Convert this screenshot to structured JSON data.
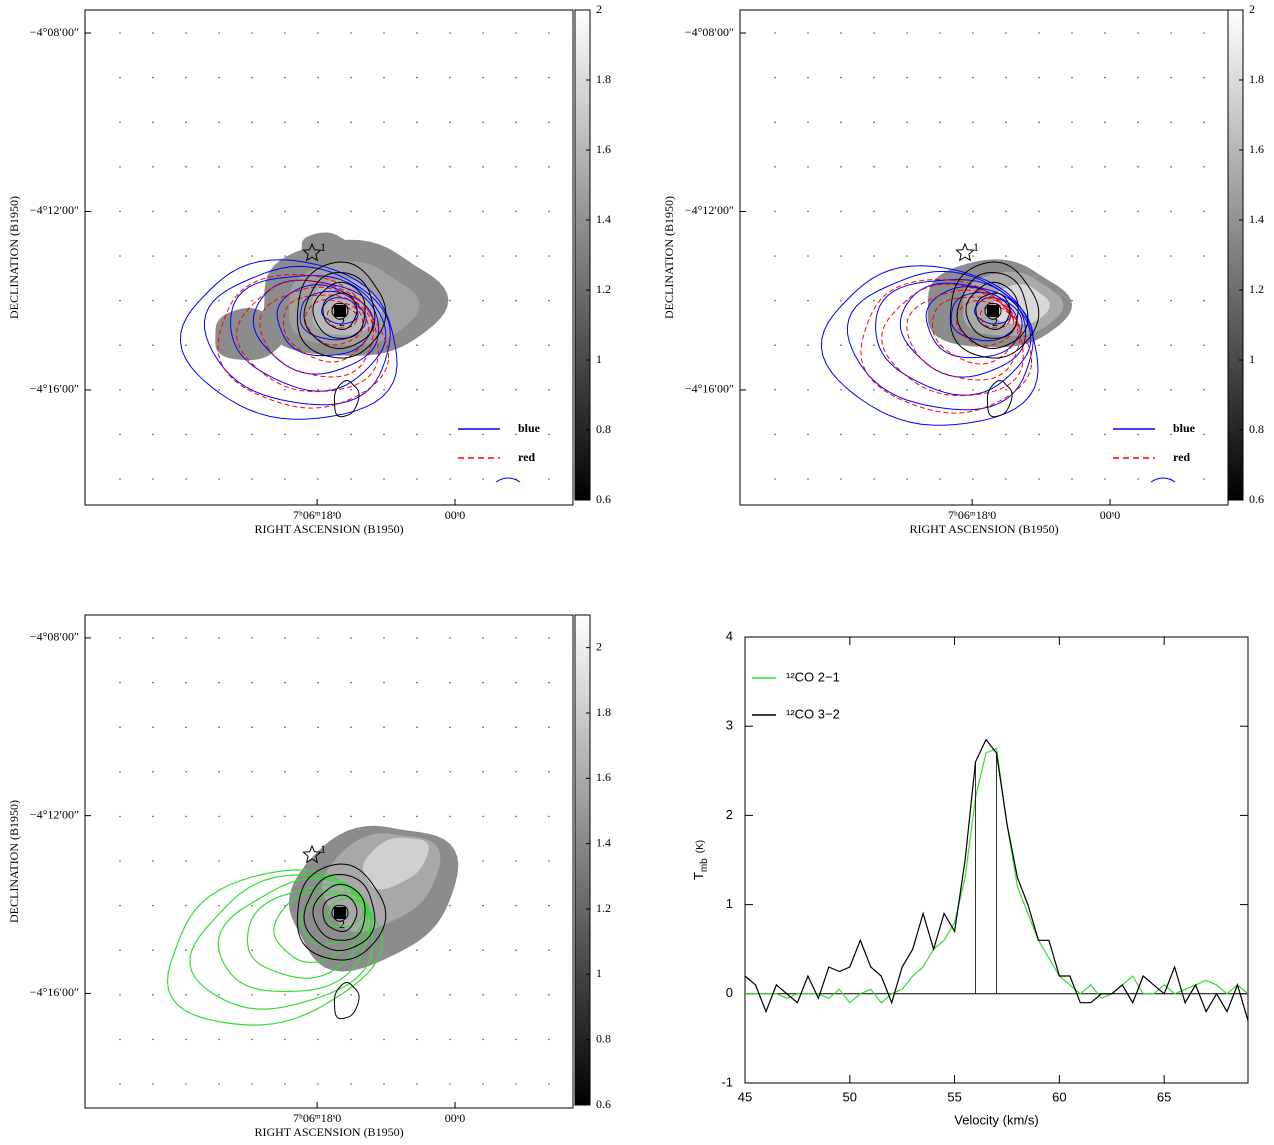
{
  "chart_data": [
    {
      "type": "contour",
      "xlabel": "RIGHT ASCENSION (B1950)",
      "ylabel": "DECLINATION (B1950)",
      "xlim": [
        48.3,
        -15.4
      ],
      "xticks": [
        {
          "value": 18,
          "label": "7ʰ06ᵐ18ˢ0"
        },
        {
          "value": 0,
          "label": "00ˢ0"
        }
      ],
      "ylim": [
        -4.1247,
        -4.3097
      ],
      "yticks": [
        {
          "value": -4.1333,
          "label": "−4°08′00″"
        },
        {
          "value": -4.2,
          "label": "−4°12′00″"
        },
        {
          "value": -4.2667,
          "label": "−4°16′00″"
        }
      ],
      "colorbar": {
        "lim": [
          0.6,
          2
        ],
        "ticks": [
          0.6,
          0.8,
          1,
          1.2,
          1.4,
          1.6,
          1.8,
          2
        ]
      },
      "sources": [
        "1",
        "2"
      ],
      "legend": [
        {
          "name": "blue",
          "color": "#0000ff",
          "style": "solid"
        },
        {
          "name": "red",
          "color": "#ff0000",
          "style": "dashed"
        }
      ]
    },
    {
      "type": "contour",
      "xlabel": "RIGHT ASCENSION (B1950)",
      "ylabel": "DECLINATION (B1950)",
      "xlim": [
        48.3,
        -15.4
      ],
      "xticks": [
        {
          "value": 18,
          "label": "7ʰ06ᵐ18ˢ0"
        },
        {
          "value": 0,
          "label": "00ˢ0"
        }
      ],
      "ylim": [
        -4.1247,
        -4.3097
      ],
      "yticks": [
        {
          "value": -4.1333,
          "label": "−4°08′00″"
        },
        {
          "value": -4.2,
          "label": "−4°12′00″"
        },
        {
          "value": -4.2667,
          "label": "−4°16′00″"
        }
      ],
      "colorbar": {
        "lim": [
          0.6,
          2
        ],
        "ticks": [
          0.6,
          0.8,
          1,
          1.2,
          1.4,
          1.6,
          1.8,
          2
        ]
      },
      "sources": [
        "1",
        "2"
      ],
      "legend": [
        {
          "name": "blue",
          "color": "#0000ff",
          "style": "solid"
        },
        {
          "name": "red",
          "color": "#ff0000",
          "style": "dashed"
        }
      ]
    },
    {
      "type": "contour",
      "xlabel": "RIGHT ASCENSION (B1950)",
      "ylabel": "DECLINATION (B1950)",
      "xlim": [
        48.3,
        -15.4
      ],
      "xticks": [
        {
          "value": 18,
          "label": "7ʰ06ᵐ18ˢ0"
        },
        {
          "value": 0,
          "label": "00ˢ0"
        }
      ],
      "ylim": [
        -4.1247,
        -4.3097
      ],
      "yticks": [
        {
          "value": -4.1333,
          "label": "−4°08′00″"
        },
        {
          "value": -4.2,
          "label": "−4°12′00″"
        },
        {
          "value": -4.2667,
          "label": "−4°16′00″"
        }
      ],
      "colorbar": {
        "lim": [
          0.6,
          2.1
        ],
        "ticks": [
          0.6,
          0.8,
          1,
          1.2,
          1.4,
          1.6,
          1.8,
          2
        ]
      },
      "sources": [
        "1",
        "2"
      ]
    },
    {
      "type": "line",
      "xlabel": "Velocity (km/s)",
      "ylabel": {
        "main": "T",
        "sub": "mb",
        "unit": "(K)"
      },
      "xlim": [
        45,
        69
      ],
      "xticks": [
        45,
        50,
        55,
        60,
        65
      ],
      "ylim": [
        -1,
        4
      ],
      "yticks": [
        -1,
        0,
        1,
        2,
        3,
        4
      ],
      "vlines": [
        56,
        57
      ],
      "x": [
        45,
        45.5,
        46,
        46.5,
        47,
        47.5,
        48,
        48.5,
        49,
        49.5,
        50,
        50.5,
        51,
        51.5,
        52,
        52.5,
        53,
        53.5,
        54,
        54.5,
        55,
        55.5,
        56,
        56.5,
        57,
        57.5,
        58,
        58.5,
        59,
        59.5,
        60,
        60.5,
        61,
        61.5,
        62,
        62.5,
        63,
        63.5,
        64,
        64.5,
        65,
        65.5,
        66,
        66.5,
        67,
        67.5,
        68,
        68.5,
        69
      ],
      "series": [
        {
          "name": "¹²CO 2−1",
          "color": "#33dd33",
          "values": [
            0,
            0,
            0,
            0,
            -0.05,
            0,
            0,
            0,
            -0.05,
            0.05,
            -0.1,
            0,
            0.05,
            -0.1,
            0,
            0.05,
            0.2,
            0.3,
            0.5,
            0.6,
            0.8,
            1.3,
            2.2,
            2.7,
            2.75,
            1.9,
            1.2,
            0.9,
            0.6,
            0.4,
            0.2,
            0.1,
            0,
            0.1,
            -0.05,
            0,
            0.1,
            0.2,
            0,
            0,
            0.1,
            0,
            0.05,
            0.1,
            0.15,
            0.1,
            0,
            0.1,
            0
          ]
        },
        {
          "name": "¹²CO 3−2",
          "color": "#000000",
          "values": [
            0.2,
            0.1,
            -0.2,
            0.1,
            0,
            -0.1,
            0.2,
            -0.05,
            0.3,
            0.25,
            0.3,
            0.6,
            0.3,
            0.2,
            -0.1,
            0.3,
            0.5,
            0.9,
            0.5,
            0.9,
            0.7,
            1.5,
            2.6,
            2.85,
            2.7,
            1.9,
            1.3,
            1,
            0.6,
            0.6,
            0.2,
            0.2,
            -0.1,
            -0.1,
            0,
            0,
            0.1,
            -0.1,
            0.2,
            0.1,
            0,
            0.3,
            -0.1,
            0.1,
            -0.2,
            0,
            -0.2,
            0.1,
            -0.3
          ]
        }
      ]
    }
  ]
}
